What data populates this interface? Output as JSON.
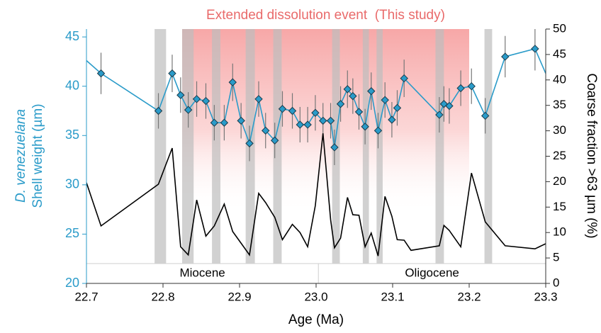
{
  "chart_data": {
    "type": "line",
    "x_label": "Age (Ma)",
    "y_label_species": "D. venezuelana",
    "y_label": "Shell weight (µm)",
    "y2_label": "Coarse fraction >63 µm (%)",
    "xlim": [
      22.7,
      23.3
    ],
    "xticks": [
      22.7,
      22.8,
      22.9,
      {
        "value": 23.0,
        "label": "23.0"
      },
      23.1,
      23.2,
      23.3
    ],
    "ylim": [
      20,
      45.8
    ],
    "yticks": [
      20,
      25,
      30,
      35,
      40,
      45
    ],
    "y2lim": [
      0,
      50
    ],
    "y2ticks": [
      0,
      5,
      10,
      15,
      20,
      25,
      30,
      35,
      40,
      45,
      50
    ],
    "highlight": {
      "label": "Extended dissolution event  (This study)",
      "range": [
        22.825,
        23.2
      ]
    },
    "bands": [
      [
        22.789,
        22.804
      ],
      [
        22.825,
        22.84
      ],
      [
        22.864,
        22.875
      ],
      [
        22.908,
        22.92
      ],
      [
        22.944,
        22.955
      ],
      [
        23.021,
        23.031
      ],
      [
        23.061,
        23.069
      ],
      [
        23.079,
        23.087
      ],
      [
        23.156,
        23.167
      ],
      [
        23.22,
        23.23
      ]
    ],
    "epochs": [
      "Miocene",
      "Oligocene"
    ],
    "epoch_boundary": 23.003,
    "series": [
      {
        "color": "#2a9bc9",
        "axis": "y",
        "x": [
          22.7,
          22.719,
          22.794,
          22.812,
          22.823,
          22.833,
          22.844,
          22.856,
          22.867,
          22.88,
          22.891,
          22.902,
          22.913,
          22.925,
          22.934,
          22.946,
          22.956,
          22.969,
          22.979,
          22.989,
          22.999,
          23.009,
          23.019,
          23.024,
          23.032,
          23.041,
          23.048,
          23.056,
          23.064,
          23.072,
          23.081,
          23.09,
          23.099,
          23.106,
          23.115,
          23.161,
          23.167,
          23.174,
          23.189,
          23.203,
          23.221,
          23.247,
          23.286,
          23.3
        ],
        "values": [
          42.6,
          41.3,
          37.5,
          41.3,
          39.1,
          37.6,
          38.7,
          38.5,
          36.3,
          36.3,
          40.4,
          36.5,
          34.2,
          38.7,
          35.5,
          34.5,
          37.7,
          37.5,
          36.1,
          36.1,
          37.3,
          36.5,
          36.5,
          33.8,
          38.2,
          39.7,
          39.0,
          37.4,
          35.9,
          39.5,
          35.5,
          38.6,
          36.6,
          37.8,
          40.8,
          37.1,
          38.2,
          38.0,
          39.8,
          40.0,
          37.0,
          43.0,
          43.8,
          41.3
        ],
        "err": [
          null,
          2.1,
          1.8,
          1.9,
          1.8,
          1.8,
          1.8,
          1.8,
          1.8,
          1.8,
          1.9,
          1.8,
          1.8,
          1.8,
          1.8,
          1.8,
          1.8,
          1.8,
          1.8,
          1.8,
          1.8,
          1.8,
          1.8,
          1.8,
          1.8,
          1.9,
          1.8,
          1.8,
          1.8,
          1.9,
          1.8,
          1.8,
          1.8,
          1.8,
          1.9,
          1.8,
          1.8,
          1.8,
          1.8,
          1.8,
          1.8,
          2.1,
          2.2,
          null
        ]
      },
      {
        "color": "#000000",
        "axis": "y2",
        "x": [
          22.7,
          22.719,
          22.794,
          22.812,
          22.823,
          22.833,
          22.844,
          22.856,
          22.867,
          22.88,
          22.891,
          22.902,
          22.913,
          22.925,
          22.934,
          22.946,
          22.956,
          22.969,
          22.979,
          22.989,
          22.999,
          23.009,
          23.019,
          23.024,
          23.032,
          23.041,
          23.048,
          23.056,
          23.064,
          23.072,
          23.081,
          23.09,
          23.099,
          23.106,
          23.115,
          23.124,
          23.161,
          23.167,
          23.174,
          23.189,
          23.203,
          23.221,
          23.247,
          23.286,
          23.3
        ],
        "values": [
          19.8,
          11.3,
          19.5,
          26.6,
          7.2,
          5.6,
          16.4,
          9.3,
          11.3,
          15.6,
          10.2,
          7.9,
          5.6,
          17.7,
          15.9,
          13.0,
          8.6,
          11.6,
          10.0,
          7.2,
          15.3,
          29.5,
          12.5,
          7.0,
          8.9,
          16.9,
          13.5,
          13.4,
          7.2,
          9.9,
          5.4,
          17.1,
          13.2,
          8.6,
          8.5,
          6.5,
          7.4,
          11.4,
          10.4,
          7.2,
          21.7,
          12.1,
          7.4,
          6.8,
          7.8
        ]
      }
    ]
  }
}
